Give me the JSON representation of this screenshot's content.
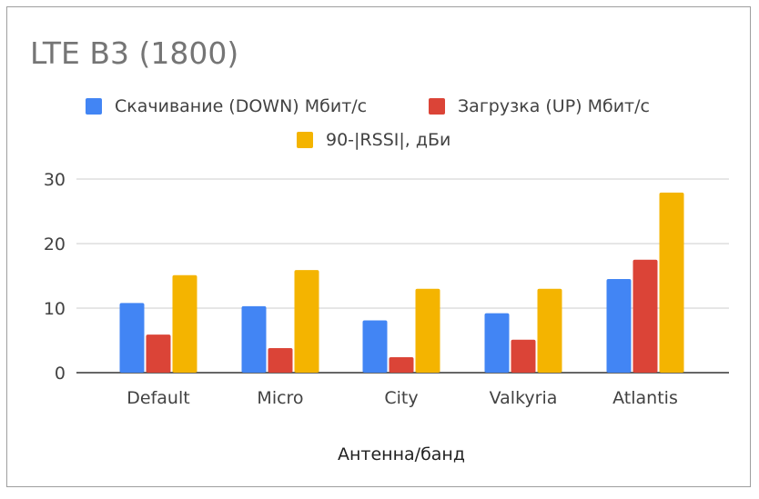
{
  "chart_data": {
    "type": "bar",
    "title": "LTE B3 (1800)",
    "xlabel": "Антенна/банд",
    "ylabel": "",
    "ylim": [
      0,
      30
    ],
    "yticks": [
      0,
      10,
      20,
      30
    ],
    "grid": true,
    "legend_position": "top",
    "categories": [
      "Default",
      "Micro",
      "City",
      "Valkyria",
      "Atlantis"
    ],
    "series": [
      {
        "name": "Скачивание (DOWN) Мбит/с",
        "color": "#4285f4",
        "values": [
          10.8,
          10.3,
          8.1,
          9.2,
          14.5
        ]
      },
      {
        "name": "Загрузка (UP) Мбит/с",
        "color": "#db4437",
        "values": [
          5.9,
          3.8,
          2.4,
          5.1,
          17.5
        ]
      },
      {
        "name": "90-|RSSI|, дБи",
        "color": "#f4b400",
        "values": [
          15.1,
          15.9,
          13.0,
          13.0,
          27.9
        ]
      }
    ]
  }
}
